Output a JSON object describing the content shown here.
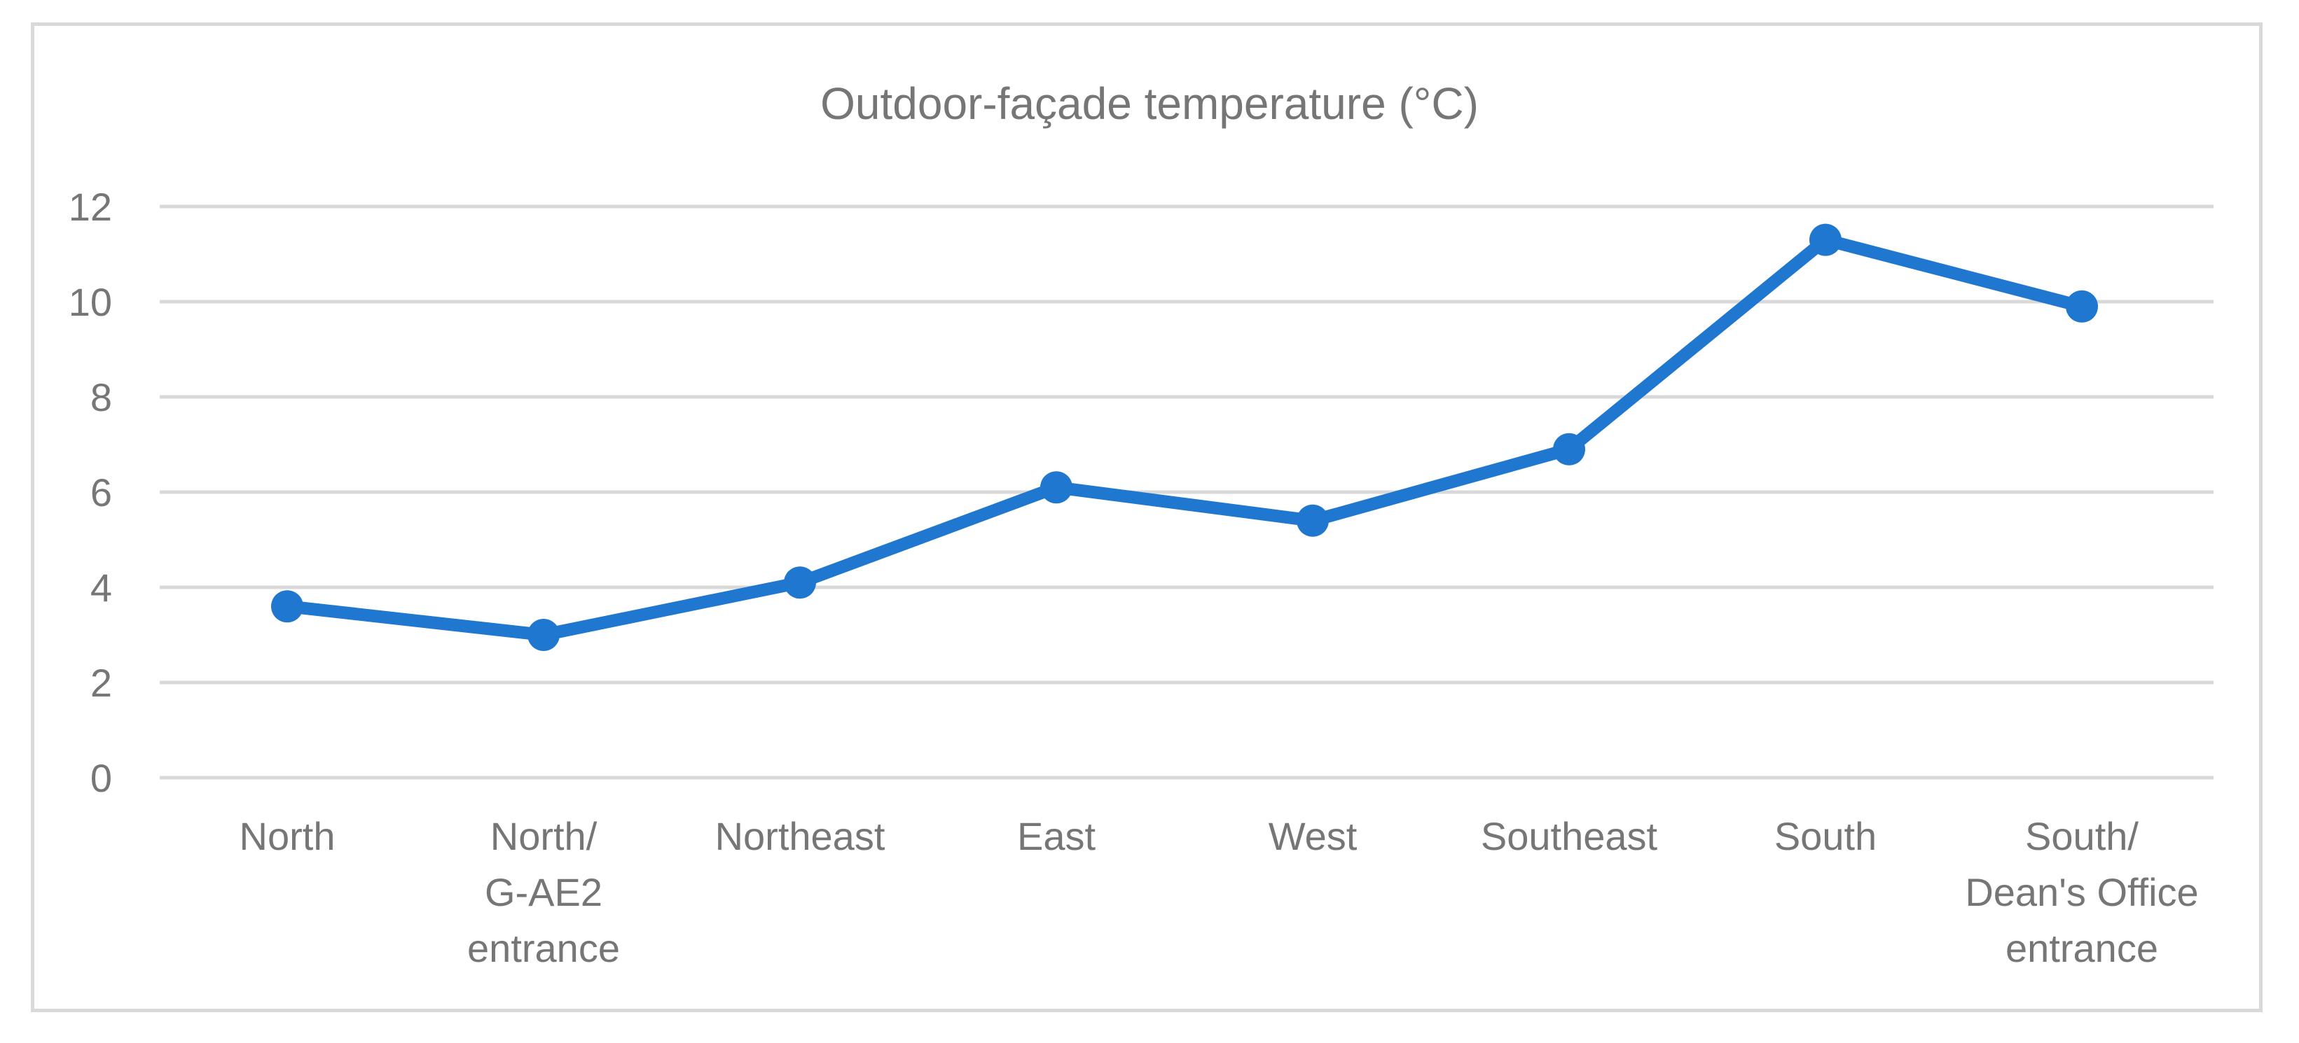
{
  "chart_data": {
    "type": "line",
    "title": "Outdoor-façade temperature (°C)",
    "xlabel": "",
    "ylabel": "",
    "categories": [
      [
        "North"
      ],
      [
        "North/",
        "G-AE2",
        "entrance"
      ],
      [
        "Northeast"
      ],
      [
        "East"
      ],
      [
        "West"
      ],
      [
        "Southeast"
      ],
      [
        "South"
      ],
      [
        "South/",
        "Dean's Office",
        "entrance"
      ]
    ],
    "series": [
      {
        "values": [
          3.6,
          3.0,
          4.1,
          6.1,
          5.4,
          6.9,
          11.3,
          9.9
        ],
        "color": "#1f77d0"
      }
    ],
    "ylim": [
      0,
      12
    ],
    "yticks": [
      0,
      2,
      4,
      6,
      8,
      10,
      12
    ],
    "grid": true,
    "legend": "none"
  }
}
